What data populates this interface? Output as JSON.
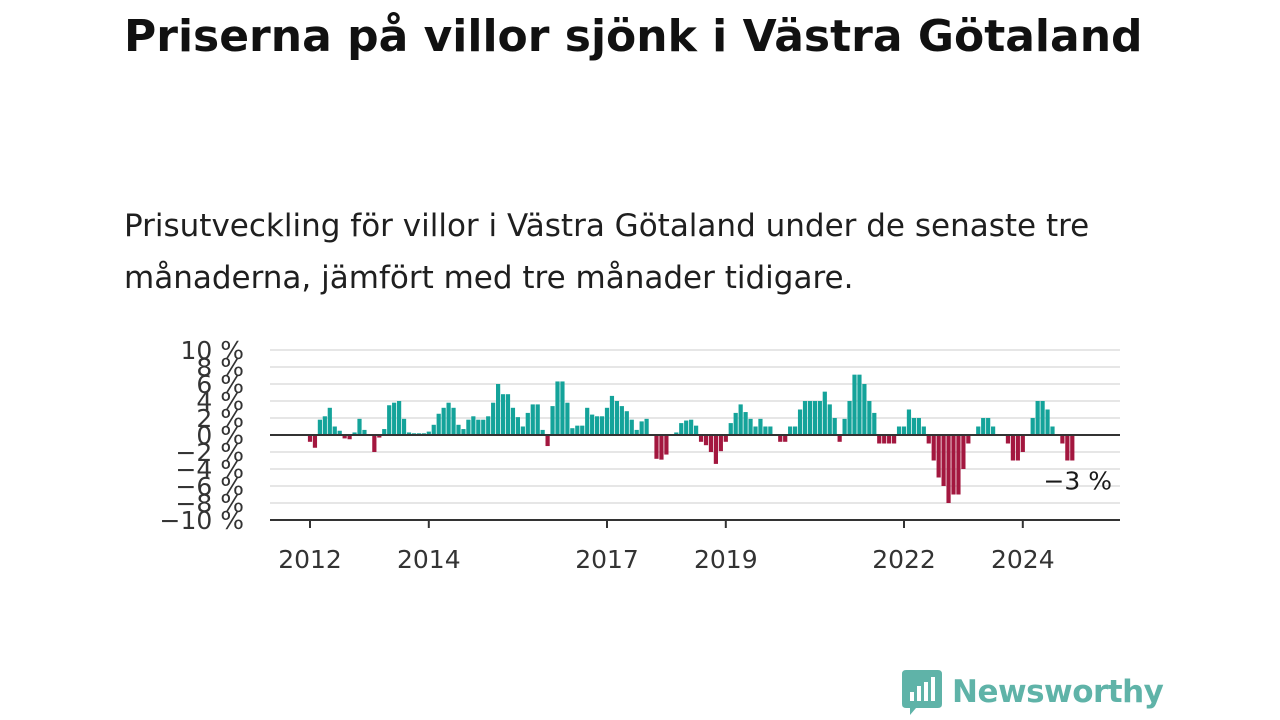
{
  "title": "Priserna på villor sjönk i Västra Götaland",
  "subtitle": "Prisutveckling för villor i Västra Götaland under de senaste tre månaderna, jämfört med tre månader tidigare.",
  "logo": {
    "text": "Newsworthy",
    "icon": "newsworthy-bar-chart-icon",
    "color": "#5fb3a8"
  },
  "colors": {
    "positive": "#14a39a",
    "negative": "#a3173f",
    "axis": "#333333",
    "grid": "#dddddd"
  },
  "chart_data": {
    "type": "bar",
    "ylim": [
      -10,
      10
    ],
    "y_ticks": [
      10,
      8,
      6,
      4,
      2,
      0,
      -2,
      -4,
      -6,
      -8,
      -10
    ],
    "y_tick_labels": [
      "10 %",
      "8 %",
      "6 %",
      "4 %",
      "2 %",
      "0 %",
      "−2 %",
      "−4 %",
      "−6 %",
      "−8 %",
      "−10 %"
    ],
    "x_start_month": "2012-01",
    "x_tick_labels": [
      "2012",
      "2014",
      "2017",
      "2019",
      "2022",
      "2024"
    ],
    "x_tick_months": [
      "2012-01",
      "2014-01",
      "2017-01",
      "2019-01",
      "2022-01",
      "2024-01"
    ],
    "grid": true,
    "annotation": "−3 %",
    "values": [
      -0.8,
      -1.5,
      1.8,
      2.2,
      3.2,
      1.0,
      0.5,
      -0.4,
      -0.5,
      0.3,
      1.9,
      0.6,
      0.0,
      -2.0,
      -0.3,
      0.7,
      3.5,
      3.8,
      4.0,
      1.9,
      0.3,
      0.2,
      0.2,
      0.2,
      0.4,
      1.2,
      2.5,
      3.2,
      3.8,
      3.2,
      1.2,
      0.7,
      1.8,
      2.2,
      1.8,
      1.8,
      2.2,
      3.8,
      6.0,
      4.8,
      4.8,
      3.2,
      2.1,
      1.0,
      2.6,
      3.6,
      3.6,
      0.6,
      -1.3,
      3.4,
      6.3,
      6.3,
      3.8,
      0.8,
      1.1,
      1.1,
      3.2,
      2.4,
      2.2,
      2.2,
      3.2,
      4.6,
      4.0,
      3.4,
      2.8,
      1.8,
      0.6,
      1.6,
      1.9,
      0.0,
      -2.8,
      -2.9,
      -2.3,
      0.0,
      0.3,
      1.4,
      1.7,
      1.8,
      1.1,
      -0.8,
      -1.2,
      -2.0,
      -3.4,
      -1.9,
      -0.8,
      1.4,
      2.6,
      3.6,
      2.7,
      1.9,
      1.0,
      1.9,
      1.0,
      1.0,
      0.0,
      -0.8,
      -0.8,
      1.0,
      1.0,
      3.0,
      4.0,
      4.0,
      4.0,
      4.0,
      5.1,
      3.6,
      2.0,
      -0.8,
      1.9,
      4.0,
      7.1,
      7.1,
      6.0,
      4.0,
      2.6,
      -1.0,
      -1.0,
      -1.0,
      -1.0,
      1.0,
      1.0,
      3.0,
      2.0,
      2.0,
      1.0,
      -1.0,
      -3.0,
      -5.0,
      -6.0,
      -8.0,
      -7.0,
      -7.0,
      -4.0,
      -1.0,
      0.0,
      1.0,
      2.0,
      2.0,
      1.0,
      0.0,
      0.0,
      -1.0,
      -3.0,
      -3.0,
      -2.0,
      0.0,
      2.0,
      4.0,
      4.0,
      3.0,
      1.0,
      0.0,
      -1.0,
      -3.0,
      -3.0
    ]
  }
}
